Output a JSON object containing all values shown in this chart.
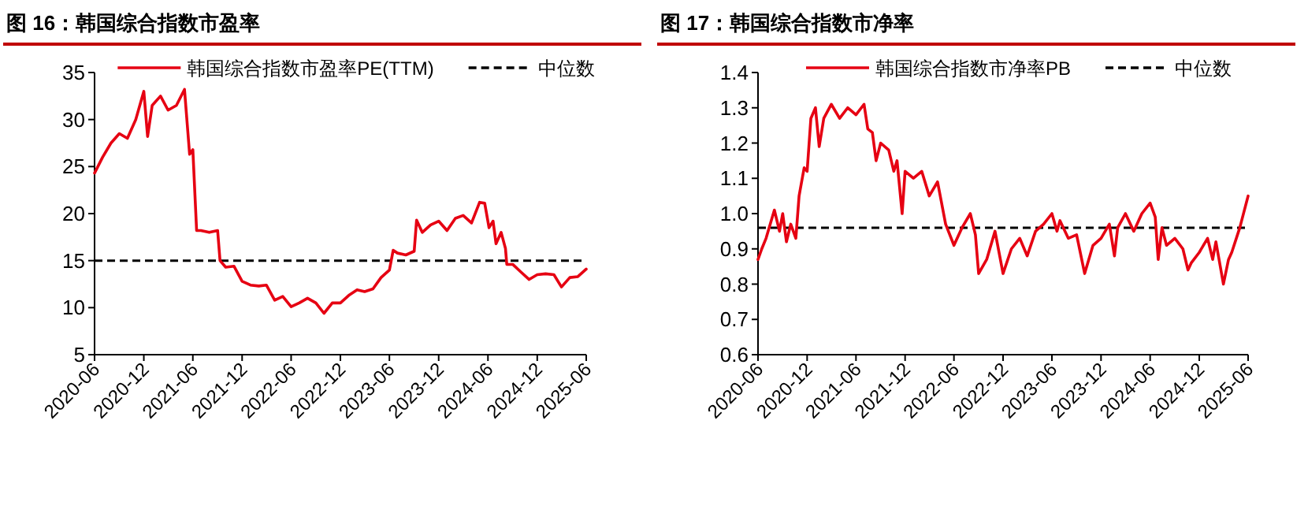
{
  "chart_data": [
    {
      "type": "line",
      "title": "图 16：韩国综合指数市盈率",
      "xlim": [
        "2020-06",
        "2025-06"
      ],
      "xticks": [
        "2020-06",
        "2020-12",
        "2021-06",
        "2021-12",
        "2022-06",
        "2022-12",
        "2023-06",
        "2023-12",
        "2024-06",
        "2024-12",
        "2025-06"
      ],
      "ylim": [
        5,
        35
      ],
      "yticks": [
        5,
        10,
        15,
        20,
        25,
        30,
        35
      ],
      "grid": false,
      "legend": "top",
      "line_style": "solid",
      "marker": "none",
      "series": [
        {
          "name": "韩国综合指数市盈率PE(TTM)",
          "color": "#e60012",
          "x": [
            "2020-06-01",
            "2020-07-01",
            "2020-08-01",
            "2020-09-01",
            "2020-10-01",
            "2020-11-01",
            "2020-12-01",
            "2020-12-15",
            "2021-01-01",
            "2021-02-01",
            "2021-03-01",
            "2021-04-01",
            "2021-05-01",
            "2021-05-20",
            "2021-06-01",
            "2021-06-15",
            "2021-07-01",
            "2021-08-01",
            "2021-09-01",
            "2021-09-10",
            "2021-10-01",
            "2021-11-01",
            "2021-12-01",
            "2022-01-01",
            "2022-02-01",
            "2022-03-01",
            "2022-04-01",
            "2022-05-01",
            "2022-06-01",
            "2022-07-01",
            "2022-08-01",
            "2022-09-01",
            "2022-10-01",
            "2022-11-01",
            "2022-12-01",
            "2023-01-01",
            "2023-02-01",
            "2023-03-01",
            "2023-04-01",
            "2023-05-01",
            "2023-06-01",
            "2023-06-15",
            "2023-07-01",
            "2023-08-01",
            "2023-09-01",
            "2023-09-10",
            "2023-10-01",
            "2023-11-01",
            "2023-12-01",
            "2024-01-01",
            "2024-02-01",
            "2024-03-01",
            "2024-04-01",
            "2024-05-01",
            "2024-05-20",
            "2024-06-05",
            "2024-06-20",
            "2024-07-01",
            "2024-07-20",
            "2024-08-05",
            "2024-08-10",
            "2024-09-01",
            "2024-10-01",
            "2024-11-01",
            "2024-12-01",
            "2025-01-01",
            "2025-02-01",
            "2025-03-01",
            "2025-04-01",
            "2025-05-01",
            "2025-06-01"
          ],
          "values": [
            24.3,
            26,
            27.5,
            28.5,
            28,
            30,
            33,
            28.2,
            31.5,
            32.5,
            31,
            31.5,
            33.2,
            26.3,
            26.8,
            18.2,
            18.2,
            18,
            18.2,
            15,
            14.3,
            14.4,
            12.8,
            12.4,
            12.3,
            12.4,
            10.8,
            11.2,
            10.1,
            10.5,
            11,
            10.5,
            9.4,
            10.5,
            10.5,
            11.3,
            11.9,
            11.7,
            12,
            13.2,
            14,
            16.1,
            15.8,
            15.6,
            16,
            19.3,
            18,
            18.8,
            19.2,
            18.2,
            19.5,
            19.8,
            19,
            21.2,
            21.1,
            18.5,
            19.2,
            16.8,
            18,
            16.3,
            14.6,
            14.6,
            13.8,
            13,
            13.5,
            13.6,
            13.5,
            12.2,
            13.2,
            13.3,
            14.1
          ]
        }
      ],
      "ref_lines": [
        {
          "axis": "y",
          "value": 15,
          "label": "中位数",
          "color": "#000000",
          "line_style": "dashed"
        }
      ]
    },
    {
      "type": "line",
      "title": "图 17：韩国综合指数市净率",
      "xlim": [
        "2020-06",
        "2025-06"
      ],
      "xticks": [
        "2020-06",
        "2020-12",
        "2021-06",
        "2021-12",
        "2022-06",
        "2022-12",
        "2023-06",
        "2023-12",
        "2024-06",
        "2024-12",
        "2025-06"
      ],
      "ylim": [
        0.6,
        1.4
      ],
      "yticks": [
        0.6,
        0.7,
        0.8,
        0.9,
        {
          "value": 1,
          "label": "1.0"
        },
        1.1,
        1.2,
        1.3,
        1.4
      ],
      "grid": false,
      "legend": "top",
      "line_style": "solid",
      "marker": "none",
      "series": [
        {
          "name": "韩国综合指数市净率PB",
          "color": "#e60012",
          "x": [
            "2020-06-01",
            "2020-06-15",
            "2020-07-01",
            "2020-08-01",
            "2020-08-20",
            "2020-09-01",
            "2020-09-15",
            "2020-10-01",
            "2020-10-20",
            "2020-11-01",
            "2020-11-20",
            "2020-12-01",
            "2020-12-15",
            "2021-01-01",
            "2021-01-15",
            "2021-02-01",
            "2021-03-01",
            "2021-04-01",
            "2021-05-01",
            "2021-06-01",
            "2021-07-01",
            "2021-07-15",
            "2021-08-01",
            "2021-08-15",
            "2021-09-01",
            "2021-10-01",
            "2021-10-20",
            "2021-11-01",
            "2021-11-20",
            "2021-12-01",
            "2022-01-01",
            "2022-02-01",
            "2022-03-01",
            "2022-04-01",
            "2022-05-01",
            "2022-06-01",
            "2022-07-01",
            "2022-08-01",
            "2022-08-20",
            "2022-09-01",
            "2022-10-01",
            "2022-11-01",
            "2022-12-01",
            "2023-01-01",
            "2023-02-01",
            "2023-03-01",
            "2023-04-01",
            "2023-05-01",
            "2023-06-01",
            "2023-06-20",
            "2023-07-01",
            "2023-08-01",
            "2023-09-01",
            "2023-10-01",
            "2023-11-01",
            "2023-12-01",
            "2024-01-01",
            "2024-01-20",
            "2024-02-01",
            "2024-03-01",
            "2024-04-01",
            "2024-05-01",
            "2024-06-01",
            "2024-06-20",
            "2024-07-01",
            "2024-07-15",
            "2024-08-01",
            "2024-09-01",
            "2024-10-01",
            "2024-10-20",
            "2024-11-01",
            "2024-12-01",
            "2025-01-01",
            "2025-01-20",
            "2025-02-01",
            "2025-03-01",
            "2025-03-20",
            "2025-04-01",
            "2025-05-01",
            "2025-06-01"
          ],
          "values": [
            0.87,
            0.9,
            0.93,
            1.01,
            0.95,
            1,
            0.92,
            0.97,
            0.93,
            1.05,
            1.13,
            1.12,
            1.27,
            1.3,
            1.19,
            1.27,
            1.31,
            1.27,
            1.3,
            1.28,
            1.31,
            1.24,
            1.23,
            1.15,
            1.2,
            1.18,
            1.12,
            1.15,
            1,
            1.12,
            1.1,
            1.12,
            1.05,
            1.09,
            0.97,
            0.91,
            0.96,
            1,
            0.94,
            0.83,
            0.87,
            0.95,
            0.83,
            0.9,
            0.93,
            0.88,
            0.95,
            0.97,
            1,
            0.95,
            0.98,
            0.93,
            0.94,
            0.83,
            0.91,
            0.93,
            0.97,
            0.88,
            0.96,
            1,
            0.95,
            1,
            1.03,
            0.99,
            0.87,
            0.96,
            0.91,
            0.93,
            0.9,
            0.84,
            0.86,
            0.89,
            0.93,
            0.87,
            0.92,
            0.8,
            0.87,
            0.89,
            0.96,
            1.05
          ]
        }
      ],
      "ref_lines": [
        {
          "axis": "y",
          "value": 0.96,
          "label": "中位数",
          "color": "#000000",
          "line_style": "dashed"
        }
      ]
    }
  ]
}
